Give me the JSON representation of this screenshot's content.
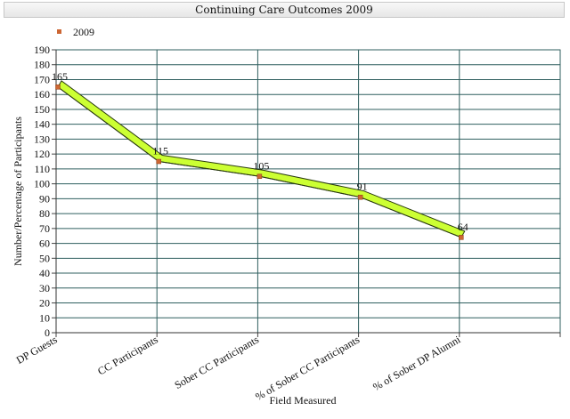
{
  "chart_data": {
    "type": "line",
    "title": "Continuing Care Outcomes 2009",
    "xlabel": "Field Measured",
    "ylabel": "Number/Percentage of Participants",
    "categories": [
      "DP Guests",
      "CC Participants",
      "Sober CC Participants",
      "% of Sober CC Participants",
      "% of Sober DP Alumni"
    ],
    "series": [
      {
        "name": "2009",
        "values": [
          165,
          115,
          105,
          91,
          64
        ],
        "labels": [
          "165",
          "115",
          "105",
          "91",
          "64"
        ],
        "color": "#ccff33",
        "marker_color": "#cc6633"
      }
    ],
    "ylim": [
      0,
      190
    ],
    "yticks": [
      0,
      10,
      20,
      30,
      40,
      50,
      60,
      70,
      80,
      90,
      100,
      110,
      120,
      130,
      140,
      150,
      160,
      170,
      180,
      190
    ],
    "grid": true,
    "legend": "top-left"
  }
}
